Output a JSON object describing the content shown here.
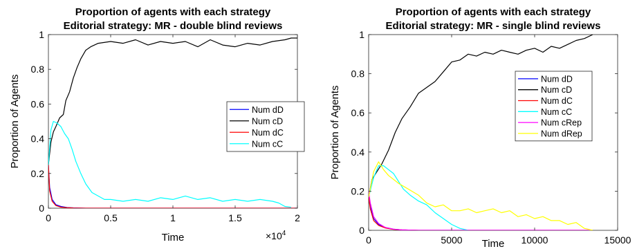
{
  "chart_data": [
    {
      "type": "line",
      "title": "Proportion of agents with each strategy",
      "subtitle": "Editorial strategy: MR - double blind reviews",
      "xlabel": "Time",
      "ylabel": "Proportion of Agents",
      "x_exponent_label": "×10",
      "x_exponent_power": "4",
      "xlim": [
        0,
        20000
      ],
      "ylim": [
        0,
        1
      ],
      "x_ticks": [
        0,
        5000,
        10000,
        15000,
        20000
      ],
      "x_tick_labels": [
        "0",
        "0.5",
        "1",
        "1.5",
        "2"
      ],
      "y_ticks": [
        0,
        0.2,
        0.4,
        0.6,
        0.8,
        1
      ],
      "y_tick_labels": [
        "0",
        "0.2",
        "0.4",
        "0.6",
        "0.8",
        "1"
      ],
      "grid": false,
      "legend_position": "center-right",
      "series": [
        {
          "name": "Num dD",
          "color": "#0000ff",
          "x": [
            0,
            100,
            300,
            600,
            1000,
            1500,
            2000,
            3000,
            5000,
            10000,
            15000,
            20000
          ],
          "y": [
            0.25,
            0.12,
            0.05,
            0.02,
            0.01,
            0.004,
            0.002,
            0,
            0,
            0,
            0,
            0
          ]
        },
        {
          "name": "Num cD",
          "color": "#000000",
          "x": [
            0,
            200,
            400,
            600,
            900,
            1200,
            1400,
            1700,
            2000,
            2300,
            2600,
            3000,
            3400,
            4000,
            5000,
            6000,
            7000,
            8000,
            9000,
            10000,
            11000,
            12000,
            13000,
            14000,
            15000,
            16000,
            17000,
            18000,
            19000,
            19500,
            20000
          ],
          "y": [
            0.25,
            0.38,
            0.44,
            0.47,
            0.52,
            0.54,
            0.62,
            0.67,
            0.75,
            0.81,
            0.86,
            0.91,
            0.93,
            0.95,
            0.96,
            0.95,
            0.97,
            0.94,
            0.96,
            0.95,
            0.96,
            0.93,
            0.97,
            0.94,
            0.93,
            0.95,
            0.94,
            0.96,
            0.97,
            0.98,
            0.98
          ]
        },
        {
          "name": "Num dC",
          "color": "#ff0000",
          "x": [
            0,
            100,
            300,
            600,
            1000,
            1500,
            2000,
            3000,
            5000,
            10000,
            15000,
            20000
          ],
          "y": [
            0.25,
            0.1,
            0.04,
            0.015,
            0.006,
            0.003,
            0.001,
            0,
            0,
            0,
            0,
            0
          ]
        },
        {
          "name": "Num cC",
          "color": "#00ffff",
          "x": [
            0,
            200,
            400,
            700,
            1000,
            1300,
            1600,
            1900,
            2200,
            2600,
            3000,
            3500,
            4000,
            4500,
            5000,
            6000,
            7000,
            8000,
            9000,
            10000,
            11000,
            12000,
            13000,
            14000,
            15000,
            16000,
            17000,
            18000,
            18500,
            19000,
            19500
          ],
          "y": [
            0.25,
            0.45,
            0.5,
            0.49,
            0.47,
            0.43,
            0.4,
            0.34,
            0.27,
            0.2,
            0.14,
            0.09,
            0.07,
            0.05,
            0.05,
            0.04,
            0.05,
            0.04,
            0.06,
            0.05,
            0.07,
            0.05,
            0.06,
            0.04,
            0.05,
            0.04,
            0.05,
            0.04,
            0.03,
            0.01,
            0.005
          ]
        }
      ]
    },
    {
      "type": "line",
      "title": "Proportion of agents with each strategy",
      "subtitle": "Editorial strategy: MR - single blind reviews",
      "xlabel": "Time",
      "ylabel": "Proportion of Agents",
      "xlim": [
        0,
        15000
      ],
      "ylim": [
        0,
        1
      ],
      "x_ticks": [
        0,
        5000,
        10000,
        15000
      ],
      "x_tick_labels": [
        "0",
        "5000",
        "10000",
        "15000"
      ],
      "y_ticks": [
        0,
        0.2,
        0.4,
        0.6,
        0.8,
        1
      ],
      "y_tick_labels": [
        "0",
        "0.2",
        "0.4",
        "0.6",
        "0.8",
        "1"
      ],
      "grid": false,
      "legend_position": "center-right",
      "series": [
        {
          "name": "Num dD",
          "color": "#0000ff",
          "x": [
            0,
            100,
            300,
            600,
            1000,
            1500,
            2000,
            3000,
            5000,
            10000,
            13500
          ],
          "y": [
            0.17,
            0.12,
            0.06,
            0.03,
            0.015,
            0.006,
            0.002,
            0,
            0,
            0,
            0
          ]
        },
        {
          "name": "Num cD",
          "color": "#000000",
          "x": [
            0,
            200,
            500,
            800,
            1200,
            1600,
            2000,
            2500,
            3000,
            3500,
            4000,
            4500,
            5000,
            5500,
            6000,
            6500,
            7000,
            7500,
            8000,
            8500,
            9000,
            9500,
            10000,
            10500,
            11000,
            11500,
            12000,
            12500,
            13000,
            13500
          ],
          "y": [
            0.17,
            0.26,
            0.3,
            0.34,
            0.41,
            0.5,
            0.57,
            0.63,
            0.7,
            0.73,
            0.76,
            0.81,
            0.86,
            0.87,
            0.9,
            0.89,
            0.91,
            0.9,
            0.92,
            0.91,
            0.9,
            0.92,
            0.93,
            0.91,
            0.94,
            0.93,
            0.95,
            0.97,
            0.98,
            1.0
          ]
        },
        {
          "name": "Num dC",
          "color": "#ff0000",
          "x": [
            0,
            100,
            300,
            600,
            1000,
            1500,
            2000,
            3000,
            5000,
            10000,
            13500
          ],
          "y": [
            0.17,
            0.11,
            0.05,
            0.025,
            0.012,
            0.005,
            0.002,
            0,
            0,
            0,
            0
          ]
        },
        {
          "name": "Num cC",
          "color": "#00ffff",
          "x": [
            0,
            300,
            600,
            900,
            1200,
            1500,
            1800,
            2100,
            2500,
            3000,
            3500,
            4000,
            4500,
            5000,
            5500,
            6000
          ],
          "y": [
            0.17,
            0.27,
            0.33,
            0.33,
            0.31,
            0.29,
            0.25,
            0.21,
            0.18,
            0.15,
            0.13,
            0.09,
            0.06,
            0.03,
            0.01,
            0
          ]
        },
        {
          "name": "Num cRep",
          "color": "#ff00ff",
          "x": [
            0,
            100,
            300,
            600,
            1000,
            1500,
            2000,
            3000,
            5000,
            10000,
            13500
          ],
          "y": [
            0.2,
            0.14,
            0.07,
            0.035,
            0.015,
            0.006,
            0.002,
            0,
            0,
            0,
            0
          ]
        },
        {
          "name": "Num dRep",
          "color": "#ffff00",
          "x": [
            0,
            300,
            600,
            900,
            1200,
            1500,
            1800,
            2200,
            2600,
            3000,
            3500,
            4000,
            4500,
            5000,
            5500,
            6000,
            6500,
            7000,
            7500,
            8000,
            8500,
            9000,
            9500,
            10000,
            10500,
            11000,
            11500,
            12000,
            12500,
            13000,
            13500
          ],
          "y": [
            0.17,
            0.3,
            0.35,
            0.31,
            0.28,
            0.26,
            0.24,
            0.22,
            0.2,
            0.18,
            0.14,
            0.12,
            0.13,
            0.1,
            0.1,
            0.11,
            0.09,
            0.1,
            0.11,
            0.09,
            0.1,
            0.07,
            0.08,
            0.06,
            0.07,
            0.05,
            0.05,
            0.03,
            0.04,
            0.01,
            0
          ]
        }
      ]
    }
  ]
}
